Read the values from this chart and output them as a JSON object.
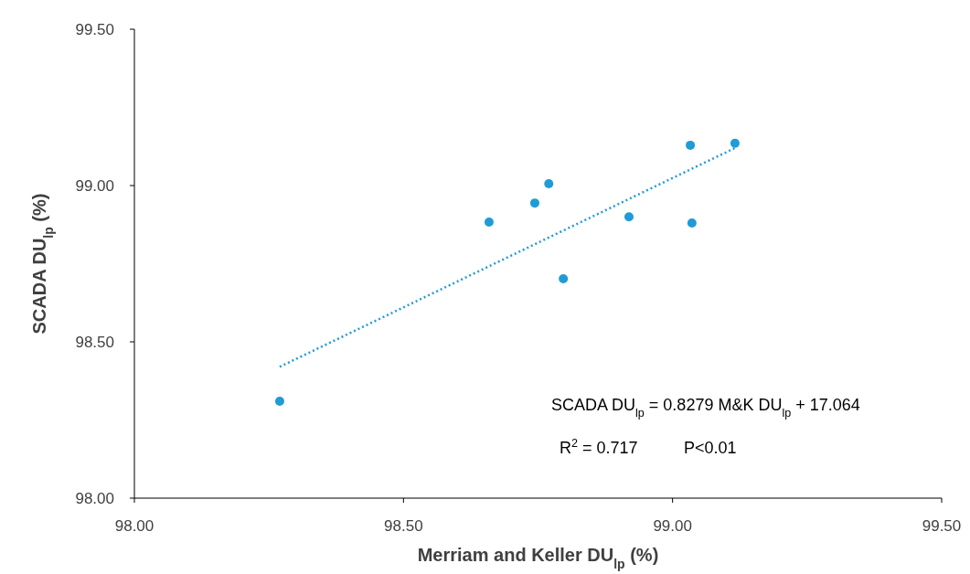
{
  "chart_data": {
    "type": "scatter",
    "xlabel": "Merriam and Keller DU$_{lp}$ (%)",
    "ylabel": "SCADA DU$_{lp}$ (%)",
    "xlim": [
      98,
      99.5
    ],
    "ylim": [
      98,
      99.5
    ],
    "xticks": [
      {
        "value": 98,
        "label": "98.00"
      },
      {
        "value": 98.5,
        "label": "98.50"
      },
      {
        "value": 99,
        "label": "99.00"
      },
      {
        "value": 99.5,
        "label": "99.50"
      }
    ],
    "yticks": [
      {
        "value": 98,
        "label": "98.00"
      },
      {
        "value": 98.5,
        "label": "98.50"
      },
      {
        "value": 99,
        "label": "99.00"
      },
      {
        "value": 99.5,
        "label": "99.50"
      }
    ],
    "grid": false,
    "marker": "circle",
    "series": [
      {
        "color": "#1f9bd7",
        "x": [
          98.27,
          98.659,
          98.744,
          98.77,
          98.797,
          98.919,
          99.033,
          99.036,
          99.116
        ],
        "values": [
          98.31,
          98.883,
          98.944,
          99.006,
          98.702,
          98.9,
          99.129,
          98.88,
          99.135
        ]
      },
      {
        "type": "line",
        "color": "#1f9bd7",
        "line_style": "dotted",
        "marker": "none",
        "x": [
          98.27,
          99.116
        ],
        "values": [
          98.42,
          99.12
        ]
      }
    ],
    "annotations": [
      "SCADA DU$_{lp}$ = 0.8279 M&K DU$_{lp}$ + 17.064",
      "R$^{2}$ = 0.717",
      "P<0.01"
    ]
  }
}
